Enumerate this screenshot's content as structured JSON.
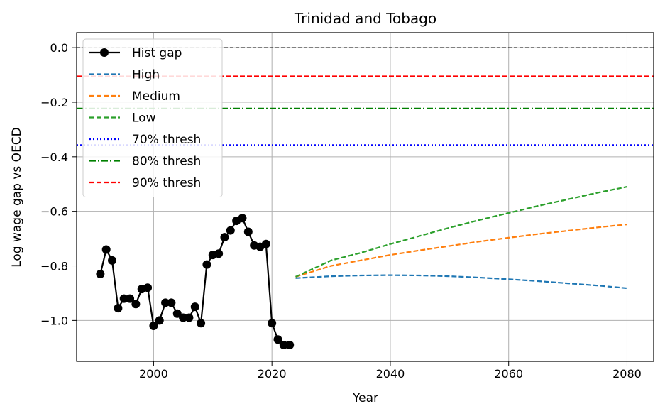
{
  "chart_data": {
    "type": "line",
    "title": "Trinidad and Tobago",
    "xlabel": "Year",
    "ylabel": "Log wage gap vs OECD",
    "xlim": [
      1987,
      2084.5
    ],
    "ylim": [
      -1.15,
      0.055
    ],
    "x_ticks": [
      2000,
      2020,
      2040,
      2060,
      2080
    ],
    "y_ticks": [
      0.0,
      -0.2,
      -0.4,
      -0.6,
      -0.8,
      -1.0
    ],
    "y_tick_labels": [
      "0.0",
      "−0.2",
      "−0.4",
      "−0.6",
      "−0.8",
      "−1.0"
    ],
    "grid": true,
    "legend_position": "top-left",
    "zero_line": {
      "y": 0.0,
      "color": "#000000",
      "style": "dashed"
    },
    "series": [
      {
        "name": "Hist gap",
        "color": "#000000",
        "style": "solid-markers",
        "x": [
          1991,
          1992,
          1993,
          1994,
          1995,
          1996,
          1997,
          1998,
          1999,
          2000,
          2001,
          2002,
          2003,
          2004,
          2005,
          2006,
          2007,
          2008,
          2009,
          2010,
          2011,
          2012,
          2013,
          2014,
          2015,
          2016,
          2017,
          2018,
          2019,
          2020,
          2021,
          2022,
          2023
        ],
        "y": [
          -0.83,
          -0.74,
          -0.78,
          -0.955,
          -0.92,
          -0.92,
          -0.94,
          -0.885,
          -0.88,
          -1.02,
          -1.0,
          -0.935,
          -0.935,
          -0.975,
          -0.99,
          -0.99,
          -0.95,
          -1.01,
          -0.795,
          -0.76,
          -0.755,
          -0.695,
          -0.67,
          -0.635,
          -0.625,
          -0.675,
          -0.725,
          -0.73,
          -0.72,
          -1.01,
          -1.07,
          -1.09,
          -1.09
        ]
      },
      {
        "name": "High",
        "color": "#1f77b4",
        "style": "dashed",
        "x": [
          2024,
          2030,
          2035,
          2040,
          2045,
          2050,
          2055,
          2060,
          2065,
          2070,
          2075,
          2080
        ],
        "y": [
          -0.845,
          -0.838,
          -0.835,
          -0.834,
          -0.835,
          -0.838,
          -0.843,
          -0.849,
          -0.856,
          -0.864,
          -0.872,
          -0.882
        ]
      },
      {
        "name": "Medium",
        "color": "#ff7f0e",
        "style": "dashed",
        "x": [
          2024,
          2030,
          2035,
          2040,
          2045,
          2050,
          2055,
          2060,
          2065,
          2070,
          2075,
          2080
        ],
        "y": [
          -0.84,
          -0.8,
          -0.78,
          -0.76,
          -0.743,
          -0.727,
          -0.711,
          -0.697,
          -0.683,
          -0.671,
          -0.659,
          -0.648
        ]
      },
      {
        "name": "Low",
        "color": "#2ca02c",
        "style": "dashed",
        "x": [
          2024,
          2030,
          2035,
          2040,
          2045,
          2050,
          2055,
          2060,
          2065,
          2070,
          2075,
          2080
        ],
        "y": [
          -0.84,
          -0.78,
          -0.752,
          -0.72,
          -0.69,
          -0.66,
          -0.632,
          -0.606,
          -0.58,
          -0.556,
          -0.532,
          -0.51
        ]
      }
    ],
    "thresholds": [
      {
        "name": "70% thresh",
        "y": -0.357,
        "color": "#0000ff",
        "style": "dotted"
      },
      {
        "name": "80% thresh",
        "y": -0.223,
        "color": "#008000",
        "style": "dashdot"
      },
      {
        "name": "90% thresh",
        "y": -0.105,
        "color": "#ff0000",
        "style": "dashed"
      }
    ]
  }
}
